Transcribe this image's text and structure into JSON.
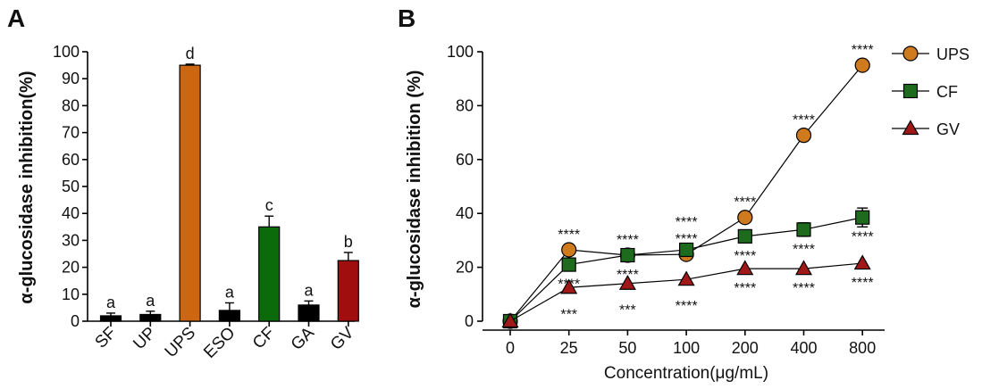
{
  "chart_data": [
    {
      "panel": "A",
      "type": "bar",
      "title": "",
      "xlabel": "",
      "ylabel": "α-glucosidase inhibition(%)",
      "ylim": [
        0,
        100
      ],
      "yticks": [
        0,
        10,
        20,
        30,
        40,
        50,
        60,
        70,
        80,
        90,
        100
      ],
      "categories": [
        "SF",
        "UP",
        "UPS",
        "ESO",
        "CF",
        "GA",
        "GV"
      ],
      "values": [
        2.0,
        2.5,
        95.0,
        4.0,
        35.0,
        6.0,
        22.5
      ],
      "errors": [
        1.0,
        1.2,
        0.4,
        2.8,
        4.0,
        1.5,
        3.0
      ],
      "letters": [
        "a",
        "a",
        "d",
        "a",
        "c",
        "a",
        "b"
      ],
      "colors": [
        "#000000",
        "#000000",
        "#CC6611",
        "#000000",
        "#0B6B0B",
        "#000000",
        "#A00E0E"
      ]
    },
    {
      "panel": "B",
      "type": "line",
      "title": "",
      "xlabel": "Concentration(μg/mL)",
      "ylabel": "α-glucosidase inhibition (%)",
      "ylim": [
        0,
        100
      ],
      "yticks": [
        0,
        20,
        40,
        60,
        80,
        100
      ],
      "x": [
        "0",
        "25",
        "50",
        "100",
        "200",
        "400",
        "800"
      ],
      "legend_position": "top-right",
      "series": [
        {
          "name": "UPS",
          "marker": "circle",
          "color": "#D07A1E",
          "values": [
            0,
            26.5,
            24.5,
            24.8,
            38.5,
            69,
            95
          ],
          "errors": [
            0,
            0,
            0,
            0,
            0,
            0,
            0
          ],
          "significance": [
            "",
            "****",
            "****",
            "****",
            "****",
            "****",
            "****"
          ]
        },
        {
          "name": "CF",
          "marker": "square",
          "color": "#1E6B1E",
          "values": [
            0,
            21,
            24.5,
            26.5,
            31.5,
            34,
            38.5
          ],
          "errors": [
            0,
            0,
            0,
            0,
            0,
            2.5,
            3.5
          ],
          "significance": [
            "",
            "****",
            "****",
            "****",
            "****",
            "****",
            "****"
          ]
        },
        {
          "name": "GV",
          "marker": "triangle",
          "color": "#A01818",
          "values": [
            0,
            12.5,
            14,
            15.5,
            19.5,
            19.5,
            21.5
          ],
          "errors": [
            0,
            0,
            0,
            0,
            0,
            0,
            0
          ],
          "significance": [
            "",
            "***",
            "***",
            "****",
            "****",
            "****",
            "****"
          ]
        }
      ]
    }
  ]
}
